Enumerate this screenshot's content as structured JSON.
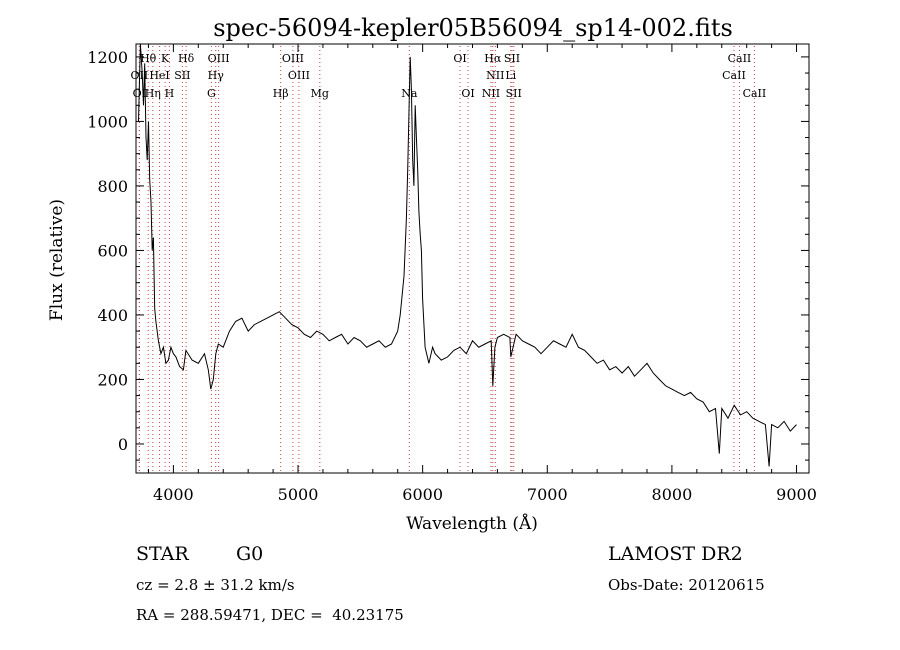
{
  "chart_data": {
    "type": "line",
    "title": "spec-56094-kepler05B56094_sp14-002.fits",
    "xlabel": "Wavelength (Å)",
    "ylabel": "Flux (relative)",
    "xlim": [
      3700,
      9100
    ],
    "ylim": [
      -90,
      1240
    ],
    "x_ticks": [
      4000,
      5000,
      6000,
      7000,
      8000,
      9000
    ],
    "y_ticks": [
      0,
      200,
      400,
      600,
      800,
      1000,
      1200
    ],
    "grid": false,
    "legend": "none",
    "line_color": "#000000",
    "marker_color": "#c84040",
    "series": [
      {
        "x": [
          3720,
          3735,
          3750,
          3760,
          3770,
          3780,
          3790,
          3800,
          3810,
          3820,
          3830,
          3840,
          3850,
          3860,
          3880,
          3900,
          3920,
          3940,
          3960,
          3980,
          4000,
          4020,
          4050,
          4080,
          4100,
          4150,
          4200,
          4250,
          4280,
          4300,
          4320,
          4340,
          4360,
          4400,
          4450,
          4500,
          4550,
          4600,
          4650,
          4700,
          4750,
          4800,
          4850,
          4900,
          4950,
          5000,
          5050,
          5100,
          5150,
          5200,
          5250,
          5300,
          5350,
          5400,
          5450,
          5500,
          5550,
          5600,
          5650,
          5700,
          5750,
          5800,
          5820,
          5850,
          5870,
          5880,
          5890,
          5900,
          5910,
          5920,
          5930,
          5940,
          5950,
          5960,
          5970,
          5980,
          5990,
          6000,
          6020,
          6050,
          6080,
          6100,
          6150,
          6200,
          6250,
          6300,
          6350,
          6400,
          6450,
          6500,
          6550,
          6563,
          6580,
          6600,
          6650,
          6700,
          6707,
          6750,
          6800,
          6850,
          6900,
          6950,
          7000,
          7050,
          7100,
          7150,
          7200,
          7250,
          7300,
          7350,
          7400,
          7450,
          7500,
          7550,
          7600,
          7650,
          7700,
          7750,
          7800,
          7850,
          7900,
          7950,
          8000,
          8050,
          8100,
          8150,
          8200,
          8250,
          8300,
          8350,
          8380,
          8400,
          8450,
          8500,
          8550,
          8600,
          8650,
          8700,
          8750,
          8780,
          8800,
          8850,
          8900,
          8950,
          9000
        ],
        "y": [
          1000,
          1250,
          1150,
          1050,
          1180,
          950,
          880,
          1000,
          820,
          750,
          600,
          640,
          420,
          380,
          320,
          280,
          300,
          250,
          260,
          300,
          280,
          270,
          240,
          230,
          290,
          260,
          250,
          280,
          230,
          170,
          200,
          280,
          310,
          300,
          350,
          380,
          390,
          350,
          370,
          380,
          390,
          400,
          410,
          390,
          370,
          360,
          340,
          330,
          350,
          340,
          320,
          330,
          340,
          310,
          330,
          320,
          300,
          310,
          320,
          300,
          310,
          350,
          400,
          520,
          700,
          850,
          1020,
          1200,
          1100,
          880,
          800,
          1050,
          950,
          850,
          720,
          650,
          600,
          450,
          300,
          250,
          300,
          280,
          260,
          270,
          290,
          300,
          280,
          320,
          300,
          310,
          320,
          180,
          300,
          330,
          340,
          330,
          270,
          340,
          320,
          310,
          300,
          280,
          300,
          320,
          310,
          300,
          340,
          300,
          290,
          270,
          250,
          260,
          230,
          240,
          220,
          240,
          210,
          230,
          250,
          220,
          200,
          180,
          170,
          160,
          150,
          160,
          140,
          130,
          100,
          110,
          -30,
          110,
          80,
          120,
          90,
          100,
          80,
          70,
          60,
          -70,
          60,
          50,
          70,
          40,
          60
        ]
      }
    ],
    "lines": [
      {
        "label": "Hθ",
        "x": 3798,
        "row": 1
      },
      {
        "label": "K",
        "x": 3934,
        "row": 1
      },
      {
        "label": "Hδ",
        "x": 4102,
        "row": 1
      },
      {
        "label": "OIII",
        "x": 4363,
        "row": 1
      },
      {
        "label": "OIII",
        "x": 4959,
        "row": 1
      },
      {
        "label": "OI",
        "x": 6300,
        "row": 1
      },
      {
        "label": "Hα",
        "x": 6563,
        "row": 1
      },
      {
        "label": "SII",
        "x": 6717,
        "row": 1
      },
      {
        "label": "CaII",
        "x": 8542,
        "row": 1
      },
      {
        "label": "OII",
        "x": 3727,
        "row": 2
      },
      {
        "label": "HeI",
        "x": 3889,
        "row": 2
      },
      {
        "label": "SII",
        "x": 4072,
        "row": 2
      },
      {
        "label": "Hγ",
        "x": 4340,
        "row": 2
      },
      {
        "label": "OIII",
        "x": 5007,
        "row": 2
      },
      {
        "label": "NII",
        "x": 6583,
        "row": 2
      },
      {
        "label": "Li",
        "x": 6707,
        "row": 2
      },
      {
        "label": "CaII",
        "x": 8498,
        "row": 2
      },
      {
        "label": "OI",
        "x": 3727,
        "row": 3
      },
      {
        "label": "Hη",
        "x": 3835,
        "row": 3
      },
      {
        "label": "H",
        "x": 3968,
        "row": 3
      },
      {
        "label": "G",
        "x": 4305,
        "row": 3
      },
      {
        "label": "Hβ",
        "x": 4861,
        "row": 3
      },
      {
        "label": "Mg",
        "x": 5175,
        "row": 3
      },
      {
        "label": "Na",
        "x": 5893,
        "row": 3
      },
      {
        "label": "OI",
        "x": 6364,
        "row": 3
      },
      {
        "label": "NII",
        "x": 6548,
        "row": 3
      },
      {
        "label": "SII",
        "x": 6731,
        "row": 3
      },
      {
        "label": "CaII",
        "x": 8662,
        "row": 3
      }
    ]
  },
  "info": {
    "object_class": "STAR",
    "subclass": "G0",
    "survey": "LAMOST DR2",
    "redshift": "cz = 2.8 ± 31.2 km/s",
    "obs_date": "Obs-Date: 20120615",
    "coords": "RA = 288.59471, DEC =  40.23175"
  }
}
